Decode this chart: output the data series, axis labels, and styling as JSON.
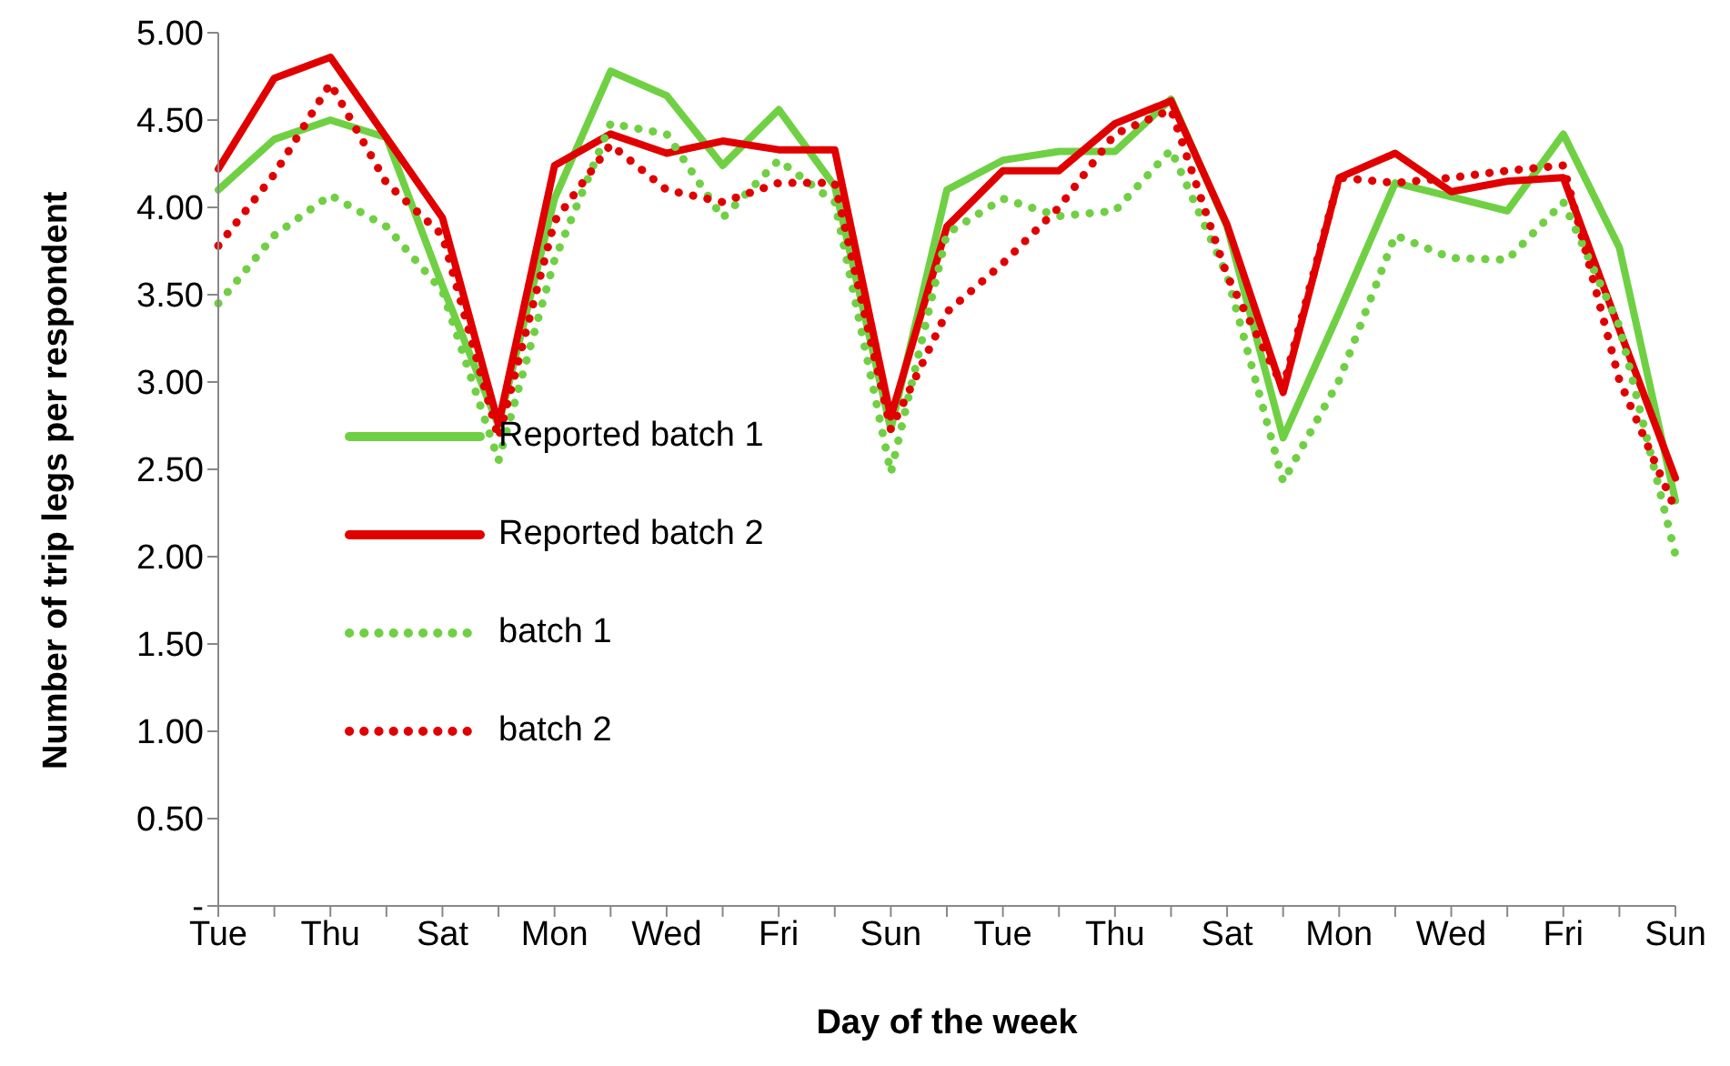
{
  "chart_data": {
    "type": "line",
    "xlabel": "Day of the week",
    "ylabel": "Number of trip legs per respondent",
    "categories": [
      "Tue",
      null,
      "Thu",
      null,
      "Sat",
      null,
      "Mon",
      null,
      "Wed",
      null,
      "Fri",
      null,
      "Sun",
      null,
      "Tue",
      null,
      "Thu",
      null,
      "Sat",
      null,
      "Mon",
      null,
      "Wed",
      null,
      "Fri",
      null,
      "Sun"
    ],
    "series": [
      {
        "name": "Reported batch 1",
        "color": "#70d044",
        "line_style": "solid",
        "values": [
          4.1,
          4.39,
          4.5,
          4.4,
          3.55,
          2.75,
          4.05,
          4.78,
          4.64,
          4.24,
          4.56,
          4.12,
          2.73,
          4.1,
          4.27,
          4.32,
          4.32,
          4.62,
          3.89,
          2.68,
          3.4,
          4.14,
          4.06,
          3.98,
          4.42,
          3.77,
          2.32
        ]
      },
      {
        "name": "Reported batch 2",
        "color": "#e00000",
        "line_style": "solid",
        "values": [
          4.22,
          4.74,
          4.86,
          4.4,
          3.94,
          2.76,
          4.24,
          4.42,
          4.31,
          4.38,
          4.33,
          4.33,
          2.8,
          3.89,
          4.21,
          4.21,
          4.48,
          4.61,
          3.9,
          2.94,
          4.17,
          4.31,
          4.09,
          4.15,
          4.17,
          3.3,
          2.45
        ]
      },
      {
        "name": "batch 1",
        "color": "#70d044",
        "line_style": "dotted",
        "values": [
          3.45,
          3.84,
          4.07,
          3.89,
          3.52,
          2.55,
          3.7,
          4.48,
          4.42,
          3.94,
          4.27,
          4.03,
          2.48,
          3.85,
          4.05,
          3.95,
          3.98,
          4.33,
          3.61,
          2.43,
          3.01,
          3.84,
          3.71,
          3.7,
          4.03,
          3.32,
          2.01
        ]
      },
      {
        "name": "batch 2",
        "color": "#e00000",
        "line_style": "dotted",
        "values": [
          3.78,
          4.19,
          4.71,
          4.14,
          3.84,
          2.68,
          3.92,
          4.36,
          4.1,
          4.03,
          4.14,
          4.14,
          2.73,
          3.4,
          3.68,
          4.0,
          4.42,
          4.56,
          3.61,
          2.97,
          4.17,
          4.14,
          4.17,
          4.21,
          4.24,
          3.01,
          2.27
        ]
      }
    ],
    "ylim": [
      0,
      5
    ],
    "yticks": [
      {
        "value": 0,
        "label": "-"
      },
      {
        "value": 0.5,
        "label": "0.50"
      },
      {
        "value": 1,
        "label": "1.00"
      },
      {
        "value": 1.5,
        "label": "1.50"
      },
      {
        "value": 2,
        "label": "2.00"
      },
      {
        "value": 2.5,
        "label": "2.50"
      },
      {
        "value": 3,
        "label": "3.00"
      },
      {
        "value": 3.5,
        "label": "3.50"
      },
      {
        "value": 4,
        "label": "4.00"
      },
      {
        "value": 4.5,
        "label": "4.50"
      },
      {
        "value": 5,
        "label": "5.00"
      }
    ],
    "grid": false,
    "legend": "bottom left",
    "marker": "none"
  }
}
